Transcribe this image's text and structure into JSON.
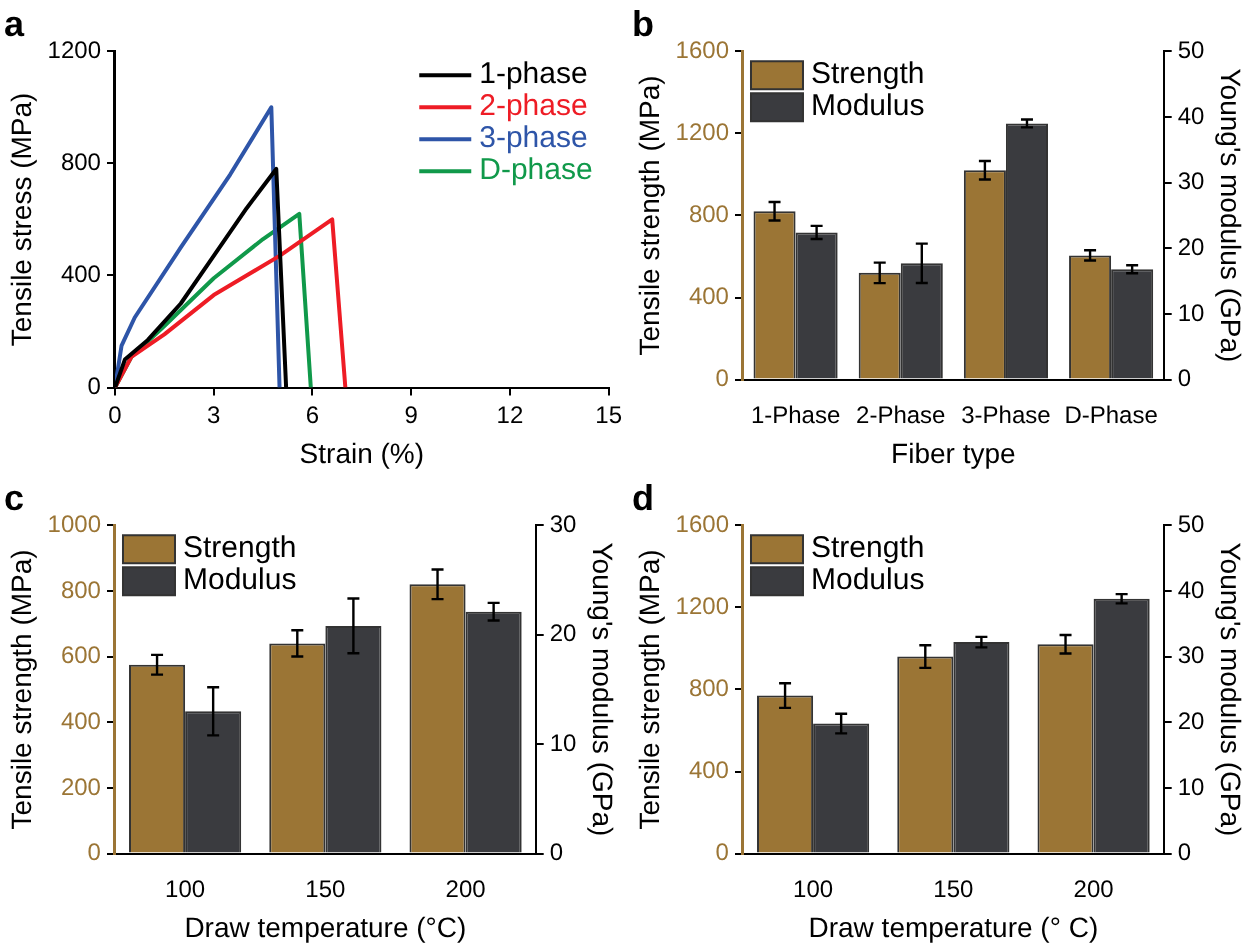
{
  "chart_data": [
    {
      "type": "line",
      "title": "a",
      "xlabel": "Strain (%)",
      "ylabel": "Tensile stress (MPa)",
      "xlim": [
        0,
        15
      ],
      "xticks": [
        0,
        3,
        6,
        9,
        12,
        15
      ],
      "ylim": [
        0,
        1200
      ],
      "yticks": [
        0,
        400,
        800,
        1200
      ],
      "grid": false,
      "legend": "top right",
      "series": [
        {
          "name": "1-phase",
          "color": "#000000",
          "x": [
            0,
            0.3,
            1,
            2,
            3,
            4,
            4.9,
            5.2
          ],
          "values": [
            0,
            100,
            170,
            300,
            470,
            640,
            780,
            0
          ]
        },
        {
          "name": "2-phase",
          "color": "#ee1c25",
          "x": [
            0,
            0.5,
            1.5,
            3,
            5,
            6.6,
            7.0
          ],
          "values": [
            0,
            110,
            190,
            330,
            470,
            600,
            0
          ]
        },
        {
          "name": "3-phase",
          "color": "#2e55a8",
          "x": [
            0,
            0.2,
            0.6,
            2,
            3.5,
            4.75,
            5.0
          ],
          "values": [
            0,
            150,
            250,
            500,
            760,
            1000,
            0
          ]
        },
        {
          "name": "D-phase",
          "color": "#10994a",
          "x": [
            0,
            0.5,
            1.5,
            3,
            4.5,
            5.6,
            5.95
          ],
          "values": [
            0,
            110,
            220,
            390,
            530,
            620,
            0
          ]
        }
      ]
    },
    {
      "type": "bar",
      "title": "b",
      "xlabel": "Fiber type",
      "ylabel": "Tensile strength (MPa)",
      "y2label": "Young's modulus (GPa)",
      "categories": [
        "1-Phase",
        "2-Phase",
        "3-Phase",
        "D-Phase"
      ],
      "ylim": [
        0,
        1600
      ],
      "yticks": [
        0,
        400,
        800,
        1200,
        1600
      ],
      "y2lim": [
        0,
        50
      ],
      "y2ticks": [
        0,
        10,
        20,
        30,
        40,
        50
      ],
      "grid": false,
      "legend": "top left",
      "series": [
        {
          "name": "Strength",
          "color": "#9b7535",
          "values": [
            820,
            520,
            1020,
            605
          ],
          "errors": [
            45,
            50,
            45,
            25
          ]
        },
        {
          "name": "Modulus",
          "color": "#3a3b3f",
          "axis": "y2",
          "values": [
            22.4,
            17.7,
            39.0,
            16.8
          ],
          "errors": [
            1,
            3,
            0.6,
            0.6
          ]
        }
      ]
    },
    {
      "type": "bar",
      "title": "c",
      "xlabel": "Draw temperature (°C)",
      "ylabel": "Tensile strength (MPa)",
      "y2label": "Young's modulus (GPa)",
      "categories": [
        "100",
        "150",
        "200"
      ],
      "ylim": [
        0,
        1000
      ],
      "yticks": [
        0,
        200,
        400,
        600,
        800,
        1000
      ],
      "y2lim": [
        0,
        30
      ],
      "y2ticks": [
        0,
        10,
        20,
        30
      ],
      "grid": false,
      "legend": "top left",
      "series": [
        {
          "name": "Strength",
          "color": "#9b7535",
          "values": [
            575,
            640,
            820
          ],
          "errors": [
            30,
            40,
            45
          ]
        },
        {
          "name": "Modulus",
          "color": "#3a3b3f",
          "axis": "y2",
          "values": [
            13.0,
            20.8,
            22.1
          ],
          "errors": [
            2.2,
            2.5,
            0.8
          ]
        }
      ]
    },
    {
      "type": "bar",
      "title": "d",
      "xlabel": "Draw temperature (° C)",
      "ylabel": "Tensile strength (MPa)",
      "y2label": "Young's modulus (GPa)",
      "categories": [
        "100",
        "150",
        "200"
      ],
      "ylim": [
        0,
        1600
      ],
      "yticks": [
        0,
        400,
        800,
        1200,
        1600
      ],
      "y2lim": [
        0,
        50
      ],
      "y2ticks": [
        0,
        10,
        20,
        30,
        40,
        50
      ],
      "grid": false,
      "legend": "top left",
      "series": [
        {
          "name": "Strength",
          "color": "#9b7535",
          "values": [
            770,
            960,
            1020
          ],
          "errors": [
            60,
            55,
            45
          ]
        },
        {
          "name": "Modulus",
          "color": "#3a3b3f",
          "axis": "y2",
          "values": [
            19.8,
            32.2,
            38.8
          ],
          "errors": [
            1.5,
            0.8,
            0.7
          ]
        }
      ]
    }
  ]
}
